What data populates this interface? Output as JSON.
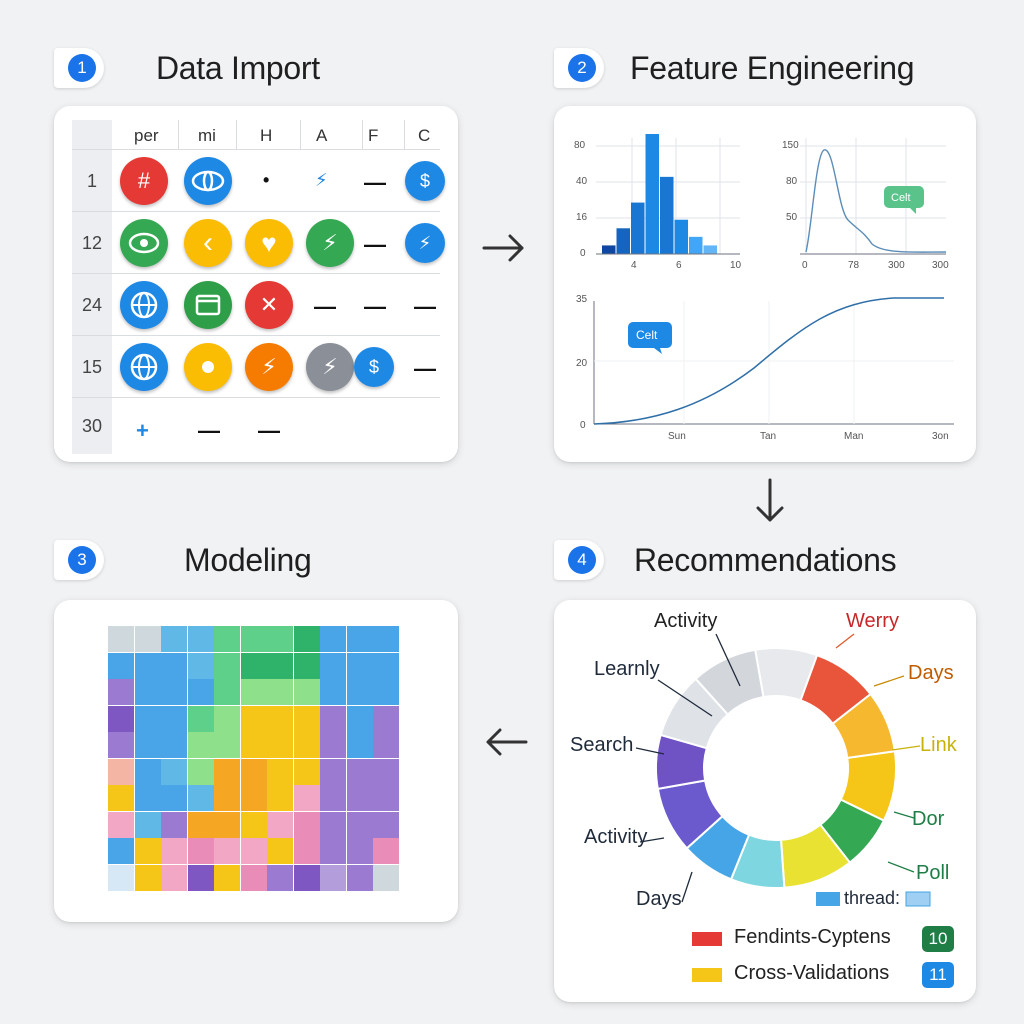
{
  "steps": [
    {
      "num": "1",
      "title": "Data Import"
    },
    {
      "num": "2",
      "title": "Feature Engineering"
    },
    {
      "num": "3",
      "title": "Modeling"
    },
    {
      "num": "4",
      "title": "Recommendations"
    }
  ],
  "table": {
    "columns": [
      "per",
      "mi",
      "H",
      "A",
      "F",
      "C"
    ],
    "rows": [
      "1",
      "12",
      "24",
      "15",
      "30"
    ],
    "icon_glyphs": {
      "hash": "#",
      "dollar": "$",
      "bolt": "⚡",
      "heart": "♥",
      "chevron": "‹",
      "x": "✕",
      "plus": "+",
      "dot": "•",
      "dash": "—"
    }
  },
  "colors": {
    "red": "#e53935",
    "blue": "#1e88e5",
    "green": "#34a853",
    "yellow": "#fbbc04",
    "orange": "#f57c00",
    "gray": "#8a8f98",
    "accent": "#1a73e8"
  },
  "chart_data": [
    {
      "type": "bar",
      "values": [
        1,
        3,
        6,
        14,
        9,
        4,
        2,
        1
      ],
      "ytick_labels": [
        "0",
        "16",
        "40",
        "80"
      ],
      "xtick_labels": [
        "4",
        "6",
        "10"
      ]
    },
    {
      "type": "line",
      "ytick_labels": [
        "0",
        "50",
        "80",
        "150"
      ],
      "xtick_labels": [
        "0",
        "78",
        "300",
        "300"
      ],
      "annotation": "Celt"
    },
    {
      "type": "line",
      "ytick_labels": [
        "0",
        "20",
        "35"
      ],
      "xtick_labels": [
        "Sun",
        "Tan",
        "Man",
        "3on"
      ],
      "annotation": "Celt"
    },
    {
      "type": "heatmap",
      "rows": 10,
      "cols": 11
    },
    {
      "type": "pie",
      "labels": [
        "Activity",
        "Werry",
        "Days",
        "Link",
        "Dor",
        "Poll",
        "thread:",
        "Days",
        "Activity",
        "Search",
        "Learnly"
      ],
      "legend": [
        {
          "label": "Fendints-Cyptens",
          "swatch": "#e53935",
          "badge": "10",
          "badge_color": "#1e7e45"
        },
        {
          "label": "Cross-Validations",
          "swatch": "#f5c518",
          "badge": "11",
          "badge_color": "#1e88e5"
        }
      ]
    }
  ]
}
